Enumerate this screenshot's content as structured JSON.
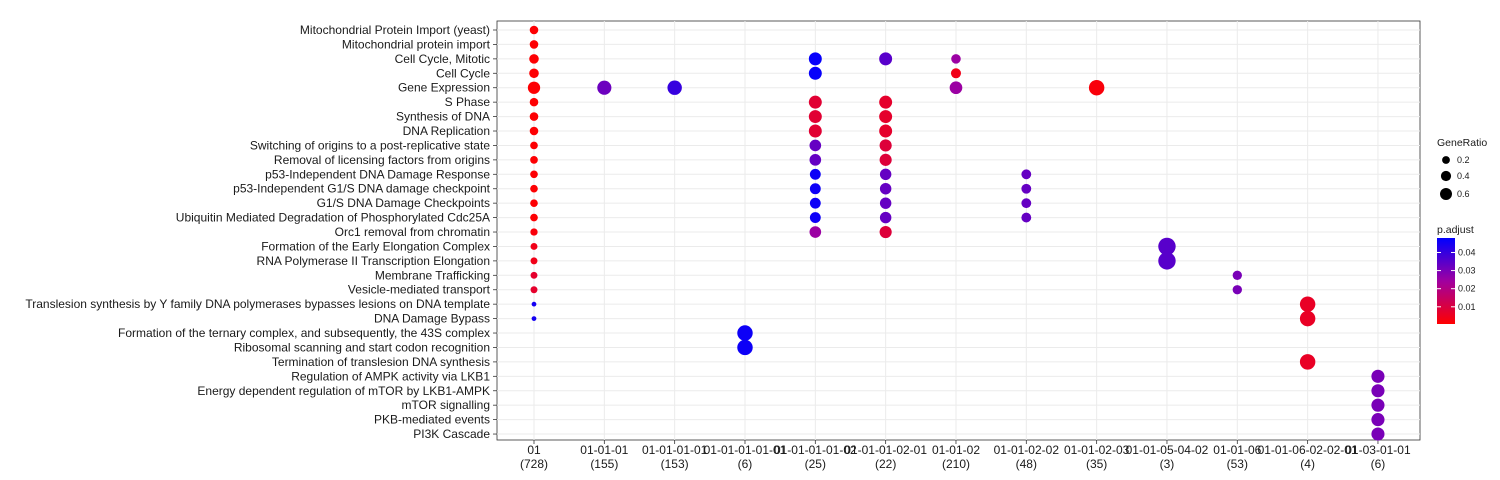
{
  "chart_data": {
    "type": "scatter",
    "title": "",
    "xlabel": "",
    "ylabel": "",
    "clusters": [
      {
        "label": "01",
        "count": "(728)"
      },
      {
        "label": "01-01-01",
        "count": "(155)"
      },
      {
        "label": "01-01-01-01",
        "count": "(153)"
      },
      {
        "label": "01-01-01-01-01",
        "count": "(6)"
      },
      {
        "label": "01-01-01-01-02",
        "count": "(25)"
      },
      {
        "label": "01-01-01-02-01",
        "count": "(22)"
      },
      {
        "label": "01-01-02",
        "count": "(210)"
      },
      {
        "label": "01-01-02-02",
        "count": "(48)"
      },
      {
        "label": "01-01-02-03",
        "count": "(35)"
      },
      {
        "label": "01-01-05-04-02",
        "count": "(3)"
      },
      {
        "label": "01-01-06",
        "count": "(53)"
      },
      {
        "label": "01-01-06-02-02-01",
        "count": "(4)"
      },
      {
        "label": "01-03-01-01",
        "count": "(6)"
      }
    ],
    "pathways": [
      "Mitochondrial Protein Import (yeast)",
      "Mitochondrial protein import",
      "Cell Cycle, Mitotic",
      "Cell Cycle",
      "Gene Expression",
      "S Phase",
      "Synthesis of DNA",
      "DNA Replication",
      "Switching of origins to a post-replicative state",
      "Removal of licensing factors from origins",
      "p53-Independent DNA Damage Response",
      "p53-Independent G1/S DNA damage checkpoint",
      "G1/S DNA Damage Checkpoints",
      "Ubiquitin Mediated Degradation of Phosphorylated Cdc25A",
      "Orc1 removal from chromatin",
      "Formation of the Early Elongation Complex",
      "RNA Polymerase II Transcription Elongation",
      "Membrane Trafficking",
      "Vesicle-mediated transport",
      "Translesion synthesis by Y family DNA polymerases bypasses lesions on DNA template",
      "DNA Damage Bypass",
      "Formation of the ternary complex, and subsequently, the 43S complex",
      "Ribosomal scanning and start codon recognition",
      "Termination of translesion DNA synthesis",
      "Regulation of AMPK activity via LKB1",
      "Energy dependent regulation of mTOR by LKB1-AMPK",
      "mTOR signalling",
      "PKB-mediated events",
      "PI3K Cascade"
    ],
    "points": [
      {
        "cluster": 0,
        "pathway": 0,
        "gene_ratio": 0.1,
        "p_adjust": 0.001
      },
      {
        "cluster": 0,
        "pathway": 1,
        "gene_ratio": 0.1,
        "p_adjust": 0.001
      },
      {
        "cluster": 0,
        "pathway": 2,
        "gene_ratio": 0.14,
        "p_adjust": 0.001
      },
      {
        "cluster": 0,
        "pathway": 3,
        "gene_ratio": 0.14,
        "p_adjust": 0.001
      },
      {
        "cluster": 0,
        "pathway": 4,
        "gene_ratio": 0.28,
        "p_adjust": 0.001
      },
      {
        "cluster": 0,
        "pathway": 5,
        "gene_ratio": 0.1,
        "p_adjust": 0.001
      },
      {
        "cluster": 0,
        "pathway": 6,
        "gene_ratio": 0.1,
        "p_adjust": 0.001
      },
      {
        "cluster": 0,
        "pathway": 7,
        "gene_ratio": 0.1,
        "p_adjust": 0.001
      },
      {
        "cluster": 0,
        "pathway": 8,
        "gene_ratio": 0.07,
        "p_adjust": 0.001
      },
      {
        "cluster": 0,
        "pathway": 9,
        "gene_ratio": 0.07,
        "p_adjust": 0.001
      },
      {
        "cluster": 0,
        "pathway": 10,
        "gene_ratio": 0.07,
        "p_adjust": 0.001
      },
      {
        "cluster": 0,
        "pathway": 11,
        "gene_ratio": 0.07,
        "p_adjust": 0.001
      },
      {
        "cluster": 0,
        "pathway": 12,
        "gene_ratio": 0.07,
        "p_adjust": 0.001
      },
      {
        "cluster": 0,
        "pathway": 13,
        "gene_ratio": 0.07,
        "p_adjust": 0.001
      },
      {
        "cluster": 0,
        "pathway": 14,
        "gene_ratio": 0.06,
        "p_adjust": 0.002
      },
      {
        "cluster": 0,
        "pathway": 15,
        "gene_ratio": 0.05,
        "p_adjust": 0.004
      },
      {
        "cluster": 0,
        "pathway": 16,
        "gene_ratio": 0.05,
        "p_adjust": 0.004
      },
      {
        "cluster": 0,
        "pathway": 17,
        "gene_ratio": 0.05,
        "p_adjust": 0.007
      },
      {
        "cluster": 0,
        "pathway": 18,
        "gene_ratio": 0.05,
        "p_adjust": 0.007
      },
      {
        "cluster": 0,
        "pathway": 19,
        "gene_ratio": 0.01,
        "p_adjust": 0.045
      },
      {
        "cluster": 0,
        "pathway": 20,
        "gene_ratio": 0.01,
        "p_adjust": 0.045
      },
      {
        "cluster": 1,
        "pathway": 4,
        "gene_ratio": 0.4,
        "p_adjust": 0.032
      },
      {
        "cluster": 2,
        "pathway": 4,
        "gene_ratio": 0.42,
        "p_adjust": 0.04
      },
      {
        "cluster": 3,
        "pathway": 21,
        "gene_ratio": 0.5,
        "p_adjust": 0.046
      },
      {
        "cluster": 3,
        "pathway": 22,
        "gene_ratio": 0.5,
        "p_adjust": 0.046
      },
      {
        "cluster": 4,
        "pathway": 2,
        "gene_ratio": 0.32,
        "p_adjust": 0.047
      },
      {
        "cluster": 4,
        "pathway": 3,
        "gene_ratio": 0.32,
        "p_adjust": 0.047
      },
      {
        "cluster": 4,
        "pathway": 5,
        "gene_ratio": 0.32,
        "p_adjust": 0.008
      },
      {
        "cluster": 4,
        "pathway": 6,
        "gene_ratio": 0.32,
        "p_adjust": 0.008
      },
      {
        "cluster": 4,
        "pathway": 7,
        "gene_ratio": 0.32,
        "p_adjust": 0.008
      },
      {
        "cluster": 4,
        "pathway": 8,
        "gene_ratio": 0.24,
        "p_adjust": 0.033
      },
      {
        "cluster": 4,
        "pathway": 9,
        "gene_ratio": 0.24,
        "p_adjust": 0.033
      },
      {
        "cluster": 4,
        "pathway": 10,
        "gene_ratio": 0.2,
        "p_adjust": 0.046
      },
      {
        "cluster": 4,
        "pathway": 11,
        "gene_ratio": 0.2,
        "p_adjust": 0.046
      },
      {
        "cluster": 4,
        "pathway": 12,
        "gene_ratio": 0.2,
        "p_adjust": 0.046
      },
      {
        "cluster": 4,
        "pathway": 13,
        "gene_ratio": 0.2,
        "p_adjust": 0.046
      },
      {
        "cluster": 4,
        "pathway": 14,
        "gene_ratio": 0.24,
        "p_adjust": 0.025
      },
      {
        "cluster": 5,
        "pathway": 2,
        "gene_ratio": 0.32,
        "p_adjust": 0.035
      },
      {
        "cluster": 5,
        "pathway": 5,
        "gene_ratio": 0.32,
        "p_adjust": 0.007
      },
      {
        "cluster": 5,
        "pathway": 6,
        "gene_ratio": 0.32,
        "p_adjust": 0.007
      },
      {
        "cluster": 5,
        "pathway": 7,
        "gene_ratio": 0.32,
        "p_adjust": 0.007
      },
      {
        "cluster": 5,
        "pathway": 8,
        "gene_ratio": 0.27,
        "p_adjust": 0.009
      },
      {
        "cluster": 5,
        "pathway": 9,
        "gene_ratio": 0.27,
        "p_adjust": 0.009
      },
      {
        "cluster": 5,
        "pathway": 10,
        "gene_ratio": 0.23,
        "p_adjust": 0.033
      },
      {
        "cluster": 5,
        "pathway": 11,
        "gene_ratio": 0.23,
        "p_adjust": 0.033
      },
      {
        "cluster": 5,
        "pathway": 12,
        "gene_ratio": 0.23,
        "p_adjust": 0.033
      },
      {
        "cluster": 5,
        "pathway": 13,
        "gene_ratio": 0.23,
        "p_adjust": 0.033
      },
      {
        "cluster": 5,
        "pathway": 14,
        "gene_ratio": 0.27,
        "p_adjust": 0.009
      },
      {
        "cluster": 6,
        "pathway": 2,
        "gene_ratio": 0.14,
        "p_adjust": 0.025
      },
      {
        "cluster": 6,
        "pathway": 3,
        "gene_ratio": 0.16,
        "p_adjust": 0.004
      },
      {
        "cluster": 6,
        "pathway": 4,
        "gene_ratio": 0.3,
        "p_adjust": 0.025
      },
      {
        "cluster": 7,
        "pathway": 10,
        "gene_ratio": 0.15,
        "p_adjust": 0.033
      },
      {
        "cluster": 7,
        "pathway": 11,
        "gene_ratio": 0.15,
        "p_adjust": 0.033
      },
      {
        "cluster": 7,
        "pathway": 12,
        "gene_ratio": 0.15,
        "p_adjust": 0.033
      },
      {
        "cluster": 7,
        "pathway": 13,
        "gene_ratio": 0.15,
        "p_adjust": 0.033
      },
      {
        "cluster": 8,
        "pathway": 4,
        "gene_ratio": 0.5,
        "p_adjust": 0.002
      },
      {
        "cluster": 9,
        "pathway": 15,
        "gene_ratio": 0.67,
        "p_adjust": 0.035
      },
      {
        "cluster": 9,
        "pathway": 16,
        "gene_ratio": 0.67,
        "p_adjust": 0.035
      },
      {
        "cluster": 10,
        "pathway": 17,
        "gene_ratio": 0.13,
        "p_adjust": 0.03
      },
      {
        "cluster": 10,
        "pathway": 18,
        "gene_ratio": 0.13,
        "p_adjust": 0.03
      },
      {
        "cluster": 11,
        "pathway": 19,
        "gene_ratio": 0.5,
        "p_adjust": 0.006
      },
      {
        "cluster": 11,
        "pathway": 20,
        "gene_ratio": 0.5,
        "p_adjust": 0.006
      },
      {
        "cluster": 11,
        "pathway": 23,
        "gene_ratio": 0.5,
        "p_adjust": 0.006
      },
      {
        "cluster": 12,
        "pathway": 24,
        "gene_ratio": 0.33,
        "p_adjust": 0.03
      },
      {
        "cluster": 12,
        "pathway": 25,
        "gene_ratio": 0.33,
        "p_adjust": 0.03
      },
      {
        "cluster": 12,
        "pathway": 26,
        "gene_ratio": 0.33,
        "p_adjust": 0.03
      },
      {
        "cluster": 12,
        "pathway": 27,
        "gene_ratio": 0.33,
        "p_adjust": 0.03
      },
      {
        "cluster": 12,
        "pathway": 28,
        "gene_ratio": 0.33,
        "p_adjust": 0.03
      }
    ],
    "legend_size": {
      "title": "GeneRatio",
      "entries": [
        {
          "label": "0.2",
          "value": 0.2
        },
        {
          "label": "0.4",
          "value": 0.4
        },
        {
          "label": "0.6",
          "value": 0.6
        }
      ]
    },
    "legend_color": {
      "title": "p.adjust",
      "ticks": [
        {
          "label": "0.04",
          "value": 0.04
        },
        {
          "label": "0.03",
          "value": 0.03
        },
        {
          "label": "0.02",
          "value": 0.02
        },
        {
          "label": "0.01",
          "value": 0.01
        }
      ],
      "range": [
        0.0005,
        0.048
      ],
      "low_color": "#ff0000",
      "high_color": "#0000ff"
    },
    "legend_placement": "right",
    "grid": true,
    "panel_background": "#ffffff",
    "grid_color": "#ebebeb"
  }
}
